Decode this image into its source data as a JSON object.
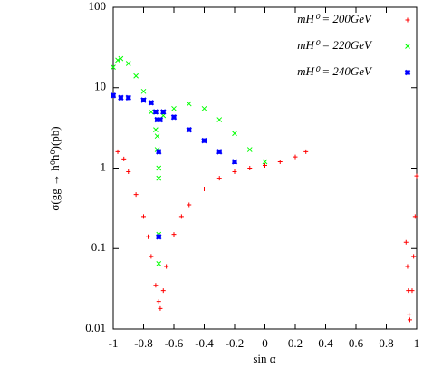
{
  "chart_data": {
    "type": "scatter",
    "xlabel": "sin α",
    "ylabel": "σ(gg → h⁰h⁰)(pb)",
    "xlim": [
      -1,
      1
    ],
    "ylim": [
      0.01,
      100
    ],
    "log_y": true,
    "xticks": [
      -1,
      -0.8,
      -0.6,
      -0.4,
      -0.2,
      0,
      0.2,
      0.4,
      0.6,
      0.8,
      1
    ],
    "yticks": [
      0.01,
      0.1,
      1,
      10,
      100
    ],
    "legend": "top-right",
    "series": [
      {
        "name": "mH⁰ = 200GeV",
        "color": "#ff0000",
        "marker": "plus",
        "x": [
          -0.97,
          -0.93,
          -0.9,
          -0.85,
          -0.8,
          -0.77,
          -0.75,
          -0.72,
          -0.7,
          -0.69,
          -0.67,
          -0.65,
          -0.6,
          -0.55,
          -0.5,
          -0.4,
          -0.3,
          -0.2,
          -0.1,
          0,
          0.1,
          0.2,
          0.27,
          0.93,
          0.94,
          0.945,
          0.95,
          0.955,
          0.97,
          0.98,
          0.99,
          1.0
        ],
        "values": [
          1.6,
          1.3,
          0.9,
          0.47,
          0.25,
          0.14,
          0.08,
          0.035,
          0.022,
          0.018,
          0.03,
          0.06,
          0.15,
          0.25,
          0.35,
          0.55,
          0.75,
          0.9,
          1.0,
          1.08,
          1.2,
          1.38,
          1.6,
          0.12,
          0.06,
          0.03,
          0.015,
          0.013,
          0.03,
          0.08,
          0.25,
          0.8
        ]
      },
      {
        "name": "mH⁰ = 220GeV",
        "color": "#00ff00",
        "marker": "cross",
        "x": [
          -1,
          -0.97,
          -0.95,
          -0.9,
          -0.85,
          -0.8,
          -0.75,
          -0.72,
          -0.71,
          -0.71,
          -0.7,
          -0.7,
          -0.7,
          -0.7,
          -0.67,
          -0.6,
          -0.5,
          -0.4,
          -0.3,
          -0.2,
          -0.1,
          0
        ],
        "values": [
          18,
          22,
          23,
          20,
          14,
          9,
          5,
          3,
          2.5,
          1.7,
          1.0,
          0.75,
          0.15,
          0.065,
          4.5,
          5.5,
          6.3,
          5.5,
          4,
          2.7,
          1.7,
          1.2
        ]
      },
      {
        "name": "mH⁰ = 240GeV",
        "color": "#0000ff",
        "marker": "star",
        "x": [
          -1,
          -0.95,
          -0.9,
          -0.8,
          -0.75,
          -0.72,
          -0.71,
          -0.7,
          -0.7,
          -0.69,
          -0.67,
          -0.6,
          -0.5,
          -0.4,
          -0.3,
          -0.2
        ],
        "values": [
          8,
          7.5,
          7.5,
          7,
          6.5,
          5,
          4,
          1.6,
          0.14,
          4,
          5,
          4.3,
          3,
          2.2,
          1.6,
          1.2
        ]
      }
    ]
  }
}
